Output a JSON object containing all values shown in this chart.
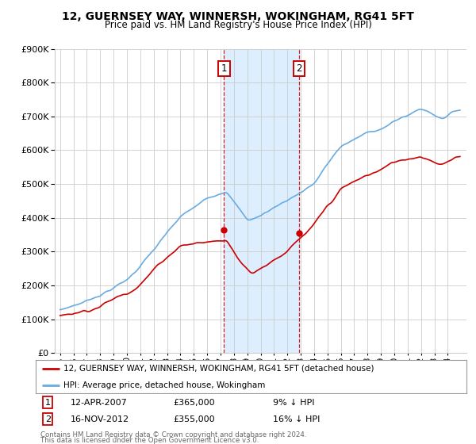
{
  "title": "12, GUERNSEY WAY, WINNERSH, WOKINGHAM, RG41 5FT",
  "subtitle": "Price paid vs. HM Land Registry's House Price Index (HPI)",
  "legend_label_red": "12, GUERNSEY WAY, WINNERSH, WOKINGHAM, RG41 5FT (detached house)",
  "legend_label_blue": "HPI: Average price, detached house, Wokingham",
  "sale1_date": "12-APR-2007",
  "sale1_price": 365000,
  "sale1_pct": "9% ↓ HPI",
  "sale2_date": "16-NOV-2012",
  "sale2_price": 355000,
  "sale2_pct": "16% ↓ HPI",
  "footer": "Contains HM Land Registry data © Crown copyright and database right 2024.\nThis data is licensed under the Open Government Licence v3.0.",
  "ylim": [
    0,
    900000
  ],
  "xlim_start": 1994.6,
  "xlim_end": 2025.4,
  "shade_start": 2007.27,
  "shade_end": 2012.88,
  "sale1_x": 2007.27,
  "sale1_y": 365000,
  "sale2_x": 2012.88,
  "sale2_y": 355000,
  "red_color": "#cc0000",
  "blue_color": "#6aabe0",
  "shade_color": "#ddeeff",
  "grid_color": "#cccccc",
  "background_color": "#ffffff",
  "title_fontsize": 10,
  "subtitle_fontsize": 8.5
}
